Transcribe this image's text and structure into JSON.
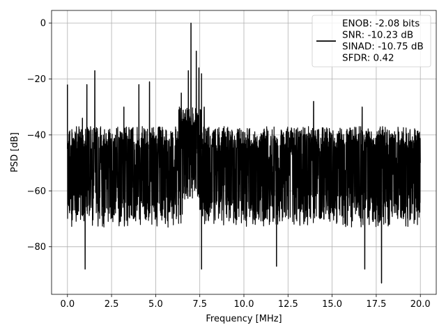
{
  "chart_data": {
    "type": "line",
    "title": "",
    "xlabel": "Frequency [MHz]",
    "ylabel": "PSD [dB]",
    "xlim": [
      -0.9,
      20.9
    ],
    "ylim": [
      -97,
      4.5
    ],
    "xticks": [
      0.0,
      2.5,
      5.0,
      7.5,
      10.0,
      12.5,
      15.0,
      17.5,
      20.0
    ],
    "xtick_labels": [
      "0.0",
      "2.5",
      "5.0",
      "7.5",
      "10.0",
      "12.5",
      "15.0",
      "17.5",
      "20.0"
    ],
    "yticks": [
      0,
      -20,
      -40,
      -60,
      -80
    ],
    "ytick_labels": [
      "0",
      "−20",
      "−40",
      "−60",
      "−80"
    ],
    "grid": true,
    "legend_position": "top-right",
    "series": [
      {
        "name": "",
        "color": "#000000",
        "noise_floor_db": {
          "upper_envelope": -37,
          "lower_envelope": -73
        },
        "peaks": [
          {
            "x": 0.0,
            "y": -22
          },
          {
            "x": 1.1,
            "y": -22
          },
          {
            "x": 1.55,
            "y": -17
          },
          {
            "x": 0.85,
            "y": -34
          },
          {
            "x": 3.2,
            "y": -30
          },
          {
            "x": 4.05,
            "y": -22
          },
          {
            "x": 4.65,
            "y": -21
          },
          {
            "x": 6.45,
            "y": -25
          },
          {
            "x": 6.85,
            "y": -17
          },
          {
            "x": 7.0,
            "y": 0
          },
          {
            "x": 7.3,
            "y": -10
          },
          {
            "x": 7.45,
            "y": -16
          },
          {
            "x": 7.6,
            "y": -18
          },
          {
            "x": 7.75,
            "y": -30
          },
          {
            "x": 13.95,
            "y": -28
          },
          {
            "x": 16.7,
            "y": -30
          },
          {
            "x": 17.8,
            "y": -93
          },
          {
            "x": 7.6,
            "y": -88
          },
          {
            "x": 11.85,
            "y": -87
          },
          {
            "x": 16.85,
            "y": -88
          },
          {
            "x": 1.0,
            "y": -88
          }
        ]
      }
    ],
    "legend": {
      "lines": [
        "ENOB: -2.08 bits",
        "SNR: -10.23 dB",
        "SINAD: -10.75 dB",
        "SFDR: 0.42"
      ]
    }
  }
}
